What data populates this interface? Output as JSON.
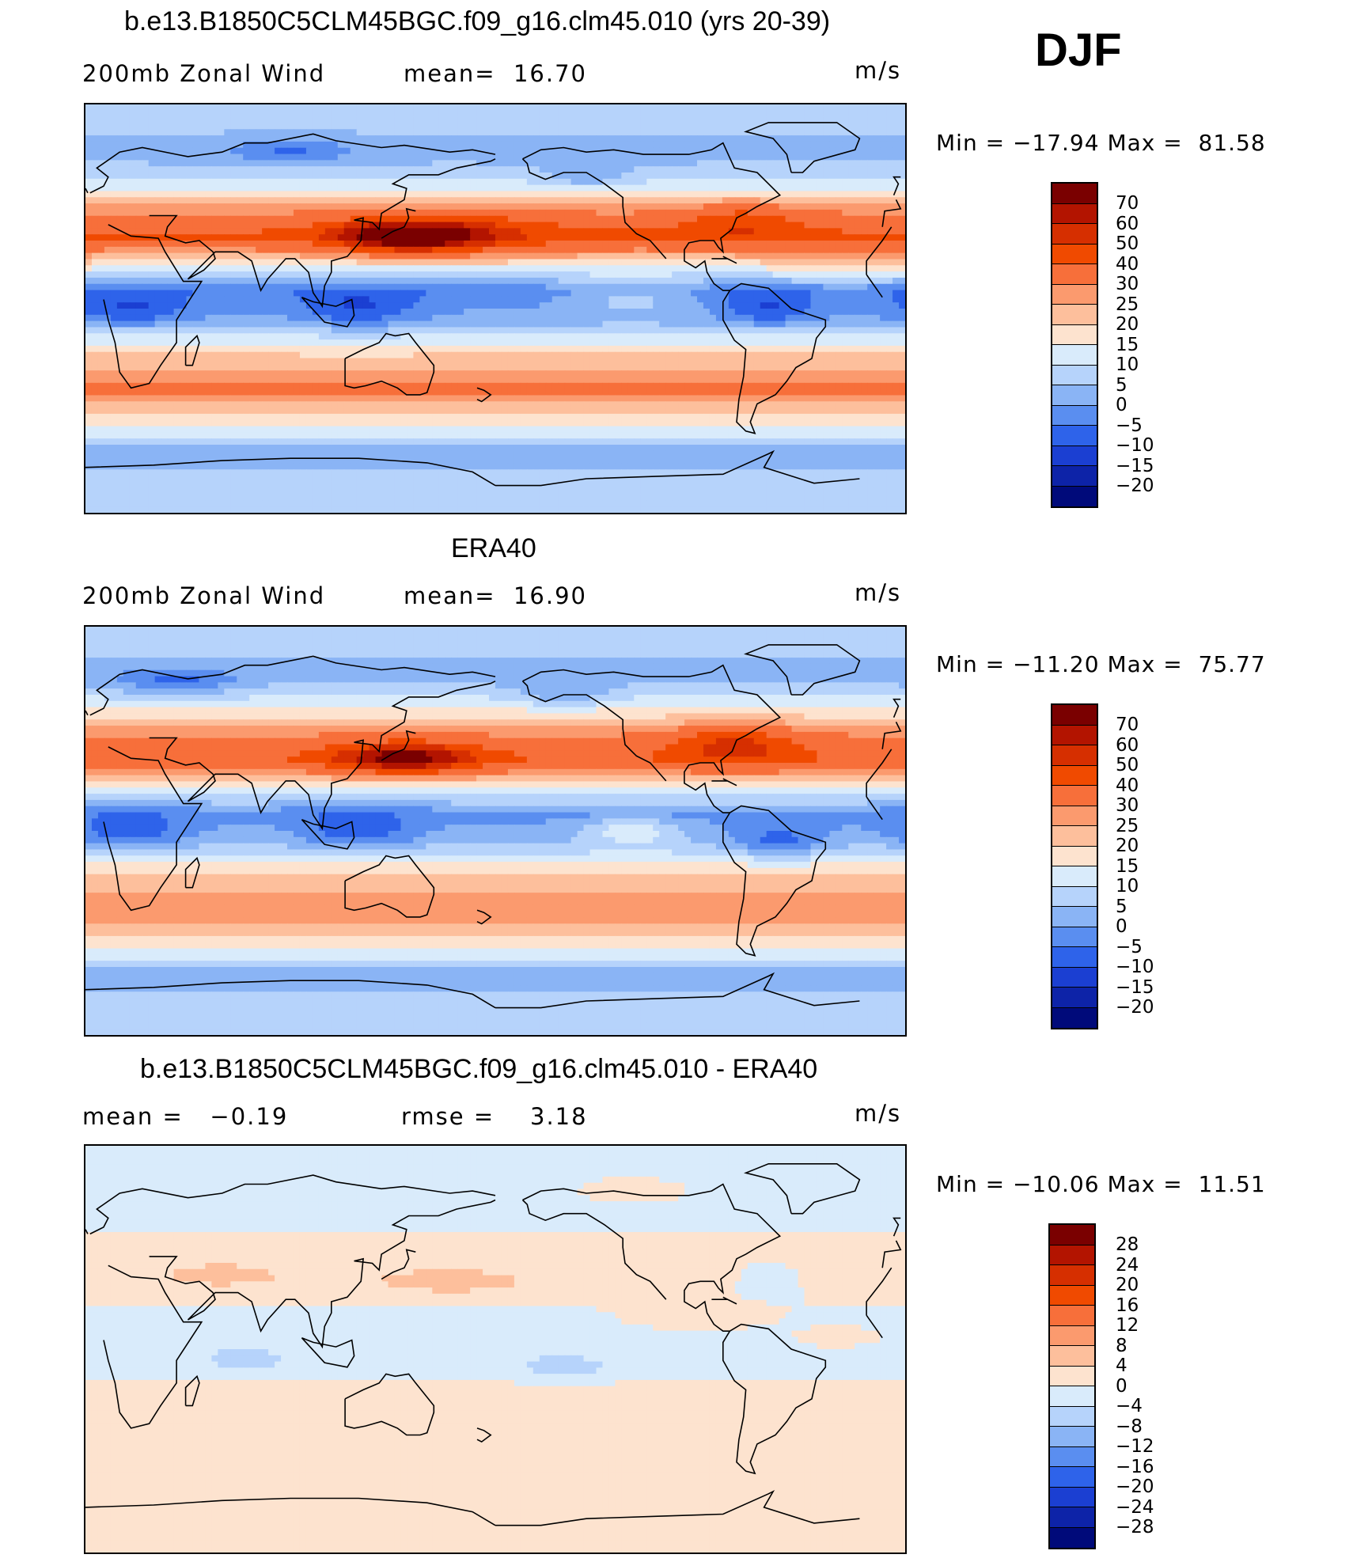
{
  "season": "DJF",
  "units": "m/s",
  "panels": [
    {
      "title": "b.e13.B1850C5CLM45BGC.f09_g16.clm45.010 (yrs 20-39)",
      "left_label": "200mb Zonal Wind",
      "mid_label": "mean=  16.70",
      "units": "m/s",
      "minmax": "Min = −17.94 Max =  81.58",
      "colorbar": {
        "labels": [
          "70",
          "60",
          "50",
          "40",
          "30",
          "25",
          "20",
          "15",
          "10",
          "5",
          "0",
          "−5",
          "−10",
          "−15",
          "−20"
        ],
        "colors": [
          "#7a0000",
          "#b31400",
          "#d62f00",
          "#f04a00",
          "#f76f3a",
          "#fb9a6e",
          "#fdbf9c",
          "#fde3cf",
          "#d9ebfb",
          "#b6d3fb",
          "#8ab4f5",
          "#5a8ef0",
          "#2e63ea",
          "#1b3fd2",
          "#0d23a8",
          "#000a7a"
        ]
      },
      "field": {
        "bands": [
          {
            "lat": 85,
            "v": 8
          },
          {
            "lat": 68,
            "v": 2
          },
          {
            "lat": 55,
            "v": 12
          },
          {
            "lat": 42,
            "v": 30
          },
          {
            "lat": 32,
            "v": 42
          },
          {
            "lat": 20,
            "v": 18
          },
          {
            "lat": 8,
            "v": -4
          },
          {
            "lat": -5,
            "v": 2
          },
          {
            "lat": -18,
            "v": 18
          },
          {
            "lat": -35,
            "v": 32
          },
          {
            "lat": -50,
            "v": 16
          },
          {
            "lat": -62,
            "v": 4
          },
          {
            "lat": -80,
            "v": 6
          }
        ],
        "blobs": [
          {
            "lon": 140,
            "lat": 32,
            "v": 42,
            "rx": 28,
            "ry": 6
          },
          {
            "lon": 160,
            "lat": 33,
            "v": 18,
            "rx": 40,
            "ry": 8
          },
          {
            "lon": -72,
            "lat": 38,
            "v": 14,
            "rx": 25,
            "ry": 8
          },
          {
            "lon": 20,
            "lat": 0,
            "v": -10,
            "rx": 25,
            "ry": 8
          },
          {
            "lon": 120,
            "lat": 0,
            "v": -10,
            "rx": 25,
            "ry": 9
          },
          {
            "lon": -60,
            "lat": 0,
            "v": -10,
            "rx": 20,
            "ry": 8
          },
          {
            "lon": -120,
            "lat": 5,
            "v": 8,
            "rx": 30,
            "ry": 8
          },
          {
            "lon": -30,
            "lat": 18,
            "v": 6,
            "rx": 25,
            "ry": 8
          },
          {
            "lon": 90,
            "lat": 70,
            "v": -8,
            "rx": 25,
            "ry": 6
          },
          {
            "lon": -140,
            "lat": 58,
            "v": -8,
            "rx": 20,
            "ry": 6
          }
        ]
      }
    },
    {
      "title": "ERA40",
      "left_label": "200mb Zonal Wind",
      "mid_label": "mean=  16.90",
      "units": "m/s",
      "minmax": "Min = −11.20 Max =  75.77",
      "colorbar": {
        "labels": [
          "70",
          "60",
          "50",
          "40",
          "30",
          "25",
          "20",
          "15",
          "10",
          "5",
          "0",
          "−5",
          "−10",
          "−15",
          "−20"
        ],
        "colors": [
          "#7a0000",
          "#b31400",
          "#d62f00",
          "#f04a00",
          "#f76f3a",
          "#fb9a6e",
          "#fdbf9c",
          "#fde3cf",
          "#d9ebfb",
          "#b6d3fb",
          "#8ab4f5",
          "#5a8ef0",
          "#2e63ea",
          "#1b3fd2",
          "#0d23a8",
          "#000a7a"
        ]
      },
      "field": {
        "bands": [
          {
            "lat": 85,
            "v": 8
          },
          {
            "lat": 68,
            "v": 2
          },
          {
            "lat": 55,
            "v": 14
          },
          {
            "lat": 42,
            "v": 30
          },
          {
            "lat": 32,
            "v": 40
          },
          {
            "lat": 20,
            "v": 18
          },
          {
            "lat": 8,
            "v": -2
          },
          {
            "lat": -5,
            "v": 4
          },
          {
            "lat": -18,
            "v": 20
          },
          {
            "lat": -35,
            "v": 30
          },
          {
            "lat": -50,
            "v": 16
          },
          {
            "lat": -62,
            "v": 4
          },
          {
            "lat": -80,
            "v": 6
          }
        ],
        "blobs": [
          {
            "lon": 140,
            "lat": 32,
            "v": 40,
            "rx": 28,
            "ry": 6
          },
          {
            "lon": -75,
            "lat": 38,
            "v": 20,
            "rx": 25,
            "ry": 8
          },
          {
            "lon": 20,
            "lat": 0,
            "v": -10,
            "rx": 25,
            "ry": 8
          },
          {
            "lon": 120,
            "lat": 0,
            "v": -10,
            "rx": 25,
            "ry": 9
          },
          {
            "lon": -55,
            "lat": -5,
            "v": -10,
            "rx": 20,
            "ry": 8
          },
          {
            "lon": -120,
            "lat": 0,
            "v": 12,
            "rx": 20,
            "ry": 6
          },
          {
            "lon": 40,
            "lat": 65,
            "v": -10,
            "rx": 25,
            "ry": 6
          },
          {
            "lon": -150,
            "lat": 60,
            "v": -8,
            "rx": 20,
            "ry": 6
          }
        ]
      }
    },
    {
      "title": "b.e13.B1850C5CLM45BGC.f09_g16.clm45.010 - ERA40",
      "left_label": "mean =   −0.19",
      "mid_label": "rmse =    3.18",
      "units": "m/s",
      "minmax": "Min = −10.06 Max =  11.51",
      "colorbar": {
        "labels": [
          "28",
          "24",
          "20",
          "16",
          "12",
          "8",
          "4",
          "0",
          "−4",
          "−8",
          "−12",
          "−16",
          "−20",
          "−24",
          "−28"
        ],
        "colors": [
          "#7a0000",
          "#b31400",
          "#d62f00",
          "#f04a00",
          "#f76f3a",
          "#fb9a6e",
          "#fdbf9c",
          "#fde3cf",
          "#d9ebfb",
          "#b6d3fb",
          "#8ab4f5",
          "#5a8ef0",
          "#2e63ea",
          "#1b3fd2",
          "#0d23a8",
          "#000a7a"
        ]
      },
      "field": {
        "bands": [
          {
            "lat": 85,
            "v": -1
          },
          {
            "lat": 60,
            "v": -1
          },
          {
            "lat": 42,
            "v": 1
          },
          {
            "lat": 30,
            "v": 2
          },
          {
            "lat": 15,
            "v": -1
          },
          {
            "lat": 0,
            "v": -2
          },
          {
            "lat": -20,
            "v": 1
          },
          {
            "lat": -45,
            "v": 1
          },
          {
            "lat": -70,
            "v": 1
          },
          {
            "lat": -85,
            "v": 2
          }
        ],
        "blobs": [
          {
            "lon": 160,
            "lat": 30,
            "v": 6,
            "rx": 30,
            "ry": 5
          },
          {
            "lon": 60,
            "lat": 33,
            "v": 5,
            "rx": 25,
            "ry": 5
          },
          {
            "lon": -90,
            "lat": 15,
            "v": 5,
            "rx": 30,
            "ry": 6
          },
          {
            "lon": -150,
            "lat": -8,
            "v": -6,
            "rx": 20,
            "ry": 5
          },
          {
            "lon": 70,
            "lat": -5,
            "v": -5,
            "rx": 20,
            "ry": 5
          },
          {
            "lon": -60,
            "lat": 30,
            "v": -4,
            "rx": 15,
            "ry": 8
          },
          {
            "lon": -30,
            "lat": 5,
            "v": 4,
            "rx": 20,
            "ry": 5
          },
          {
            "lon": -120,
            "lat": 70,
            "v": 4,
            "rx": 20,
            "ry": 5
          }
        ]
      }
    }
  ]
}
